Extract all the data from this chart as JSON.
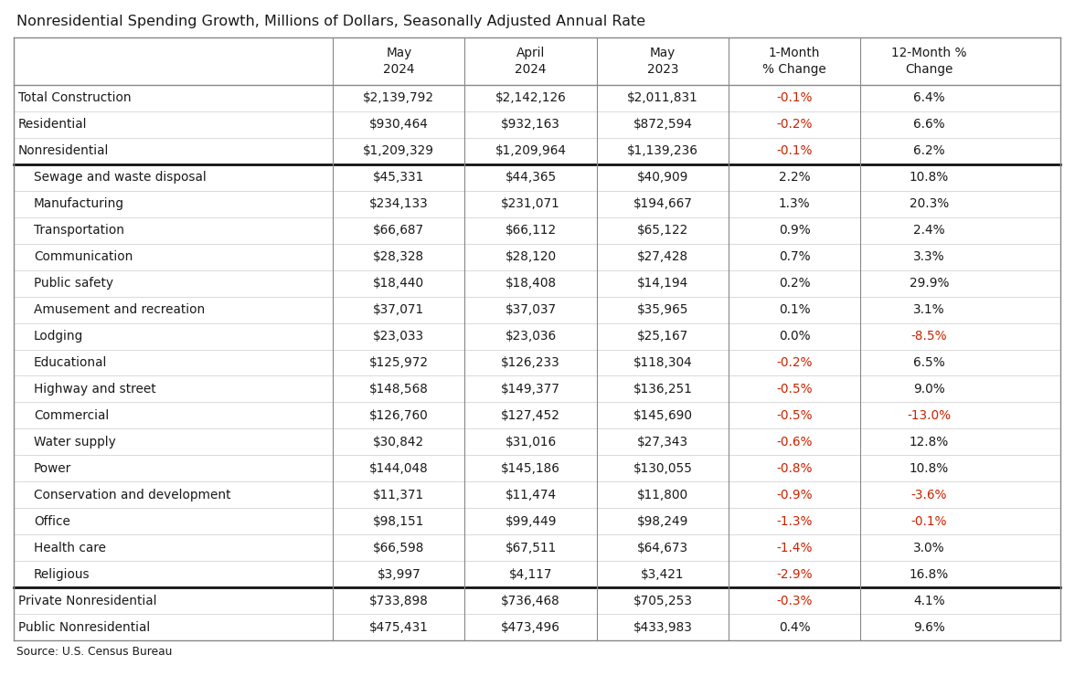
{
  "title": "Nonresidential Spending Growth, Millions of Dollars, Seasonally Adjusted Annual Rate",
  "source": "Source: U.S. Census Bureau",
  "col_headers": [
    "",
    "May\n2024",
    "April\n2024",
    "May\n2023",
    "1-Month\n% Change",
    "12-Month %\nChange"
  ],
  "rows": [
    {
      "label": "Total Construction",
      "may24": "$2,139,792",
      "apr24": "$2,142,126",
      "may23": "$2,011,831",
      "m1": "-0.1%",
      "m12": "6.4%",
      "m1_red": true,
      "m12_red": false,
      "thick_bottom": false,
      "indent": false
    },
    {
      "label": "Residential",
      "may24": "$930,464",
      "apr24": "$932,163",
      "may23": "$872,594",
      "m1": "-0.2%",
      "m12": "6.6%",
      "m1_red": true,
      "m12_red": false,
      "thick_bottom": false,
      "indent": false
    },
    {
      "label": "Nonresidential",
      "may24": "$1,209,329",
      "apr24": "$1,209,964",
      "may23": "$1,139,236",
      "m1": "-0.1%",
      "m12": "6.2%",
      "m1_red": true,
      "m12_red": false,
      "thick_bottom": true,
      "indent": false
    },
    {
      "label": "Sewage and waste disposal",
      "may24": "$45,331",
      "apr24": "$44,365",
      "may23": "$40,909",
      "m1": "2.2%",
      "m12": "10.8%",
      "m1_red": false,
      "m12_red": false,
      "thick_bottom": false,
      "indent": true
    },
    {
      "label": "Manufacturing",
      "may24": "$234,133",
      "apr24": "$231,071",
      "may23": "$194,667",
      "m1": "1.3%",
      "m12": "20.3%",
      "m1_red": false,
      "m12_red": false,
      "thick_bottom": false,
      "indent": true
    },
    {
      "label": "Transportation",
      "may24": "$66,687",
      "apr24": "$66,112",
      "may23": "$65,122",
      "m1": "0.9%",
      "m12": "2.4%",
      "m1_red": false,
      "m12_red": false,
      "thick_bottom": false,
      "indent": true
    },
    {
      "label": "Communication",
      "may24": "$28,328",
      "apr24": "$28,120",
      "may23": "$27,428",
      "m1": "0.7%",
      "m12": "3.3%",
      "m1_red": false,
      "m12_red": false,
      "thick_bottom": false,
      "indent": true
    },
    {
      "label": "Public safety",
      "may24": "$18,440",
      "apr24": "$18,408",
      "may23": "$14,194",
      "m1": "0.2%",
      "m12": "29.9%",
      "m1_red": false,
      "m12_red": false,
      "thick_bottom": false,
      "indent": true
    },
    {
      "label": "Amusement and recreation",
      "may24": "$37,071",
      "apr24": "$37,037",
      "may23": "$35,965",
      "m1": "0.1%",
      "m12": "3.1%",
      "m1_red": false,
      "m12_red": false,
      "thick_bottom": false,
      "indent": true
    },
    {
      "label": "Lodging",
      "may24": "$23,033",
      "apr24": "$23,036",
      "may23": "$25,167",
      "m1": "0.0%",
      "m12": "-8.5%",
      "m1_red": false,
      "m12_red": true,
      "thick_bottom": false,
      "indent": true
    },
    {
      "label": "Educational",
      "may24": "$125,972",
      "apr24": "$126,233",
      "may23": "$118,304",
      "m1": "-0.2%",
      "m12": "6.5%",
      "m1_red": true,
      "m12_red": false,
      "thick_bottom": false,
      "indent": true
    },
    {
      "label": "Highway and street",
      "may24": "$148,568",
      "apr24": "$149,377",
      "may23": "$136,251",
      "m1": "-0.5%",
      "m12": "9.0%",
      "m1_red": true,
      "m12_red": false,
      "thick_bottom": false,
      "indent": true
    },
    {
      "label": "Commercial",
      "may24": "$126,760",
      "apr24": "$127,452",
      "may23": "$145,690",
      "m1": "-0.5%",
      "m12": "-13.0%",
      "m1_red": true,
      "m12_red": true,
      "thick_bottom": false,
      "indent": true
    },
    {
      "label": "Water supply",
      "may24": "$30,842",
      "apr24": "$31,016",
      "may23": "$27,343",
      "m1": "-0.6%",
      "m12": "12.8%",
      "m1_red": true,
      "m12_red": false,
      "thick_bottom": false,
      "indent": true
    },
    {
      "label": "Power",
      "may24": "$144,048",
      "apr24": "$145,186",
      "may23": "$130,055",
      "m1": "-0.8%",
      "m12": "10.8%",
      "m1_red": true,
      "m12_red": false,
      "thick_bottom": false,
      "indent": true
    },
    {
      "label": "Conservation and development",
      "may24": "$11,371",
      "apr24": "$11,474",
      "may23": "$11,800",
      "m1": "-0.9%",
      "m12": "-3.6%",
      "m1_red": true,
      "m12_red": true,
      "thick_bottom": false,
      "indent": true
    },
    {
      "label": "Office",
      "may24": "$98,151",
      "apr24": "$99,449",
      "may23": "$98,249",
      "m1": "-1.3%",
      "m12": "-0.1%",
      "m1_red": true,
      "m12_red": true,
      "thick_bottom": false,
      "indent": true
    },
    {
      "label": "Health care",
      "may24": "$66,598",
      "apr24": "$67,511",
      "may23": "$64,673",
      "m1": "-1.4%",
      "m12": "3.0%",
      "m1_red": true,
      "m12_red": false,
      "thick_bottom": false,
      "indent": true
    },
    {
      "label": "Religious",
      "may24": "$3,997",
      "apr24": "$4,117",
      "may23": "$3,421",
      "m1": "-2.9%",
      "m12": "16.8%",
      "m1_red": true,
      "m12_red": false,
      "thick_bottom": true,
      "indent": true
    },
    {
      "label": "Private Nonresidential",
      "may24": "$733,898",
      "apr24": "$736,468",
      "may23": "$705,253",
      "m1": "-0.3%",
      "m12": "4.1%",
      "m1_red": true,
      "m12_red": false,
      "thick_bottom": false,
      "indent": false
    },
    {
      "label": "Public Nonresidential",
      "may24": "$475,431",
      "apr24": "$473,496",
      "may23": "$433,983",
      "m1": "0.4%",
      "m12": "9.6%",
      "m1_red": false,
      "m12_red": false,
      "thick_bottom": false,
      "indent": false
    }
  ],
  "bg_color": "#ffffff",
  "text_color": "#1a1a1a",
  "red_color": "#cc2200",
  "border_color": "#888888",
  "thick_border_color": "#111111",
  "thin_line_color": "#cccccc",
  "figsize": [
    11.76,
    7.51
  ],
  "dpi": 100
}
